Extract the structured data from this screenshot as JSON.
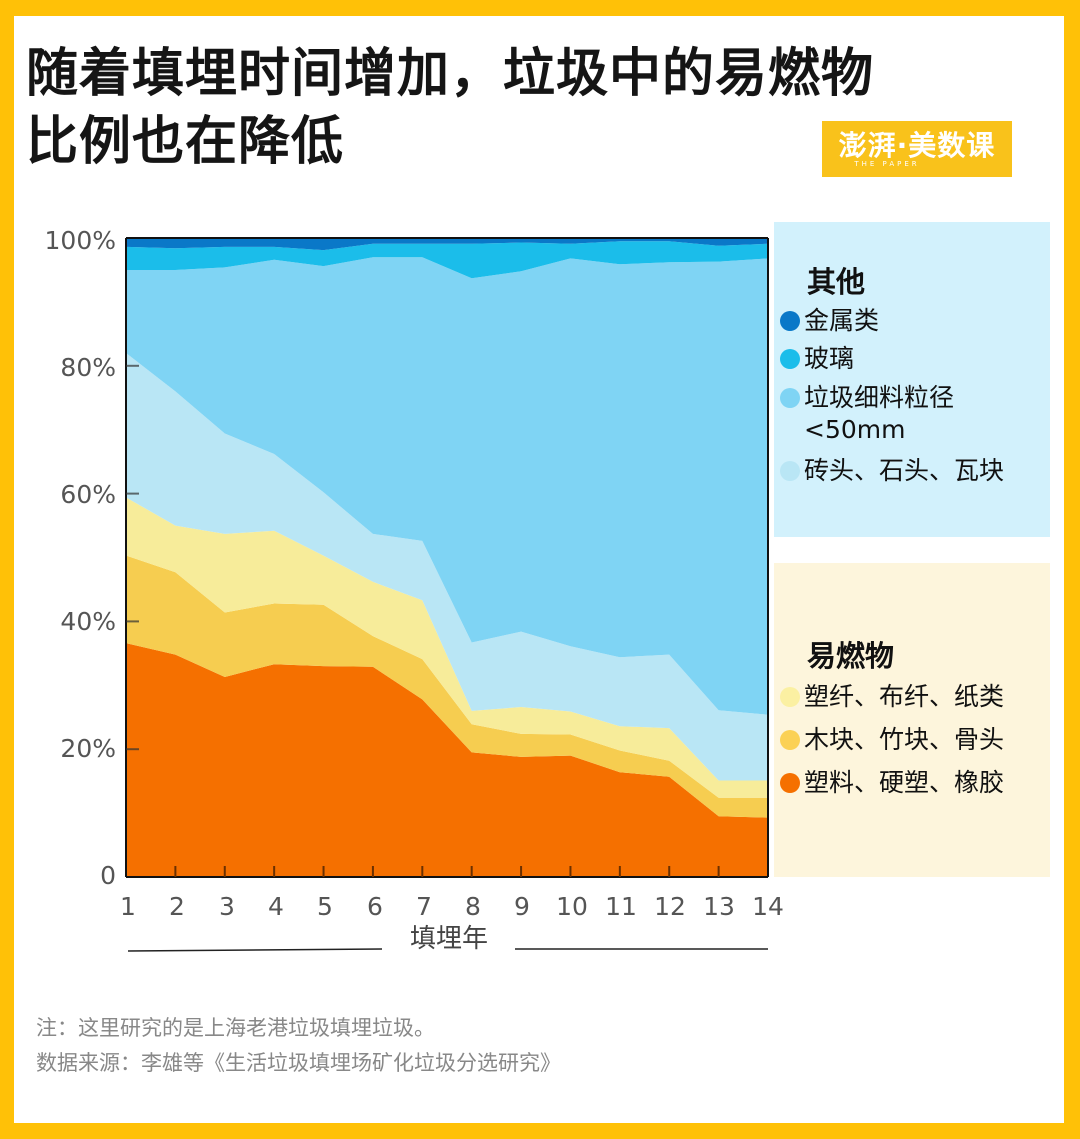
{
  "title_line1": "随着填埋时间增加，垃圾中的易燃物",
  "title_line2": "比例也在降低",
  "logo": {
    "main": "澎湃·美数课",
    "sub": "THE PAPER"
  },
  "legend": {
    "group_other": "其他",
    "group_combustible": "易燃物",
    "items": [
      {
        "label": "金属类",
        "color": "#0a78c8"
      },
      {
        "label": "玻璃",
        "color": "#1bbdea"
      },
      {
        "label": "垃圾细料粒径\n<50mm",
        "label_line1": "垃圾细料粒径",
        "label_line2": "<50mm",
        "color": "#7fd4f4"
      },
      {
        "label": "砖头、石头、瓦块",
        "color": "#b9e6f5"
      },
      {
        "label": "塑纤、布纤、纸类",
        "color": "#f7ec9a"
      },
      {
        "label": "木块、竹块、骨头",
        "color": "#f6cd50"
      },
      {
        "label": "塑料、硬塑、橡胶",
        "color": "#f57000"
      }
    ]
  },
  "note": "注：这里研究的是上海老港垃圾填埋垃圾。",
  "source": "数据来源：李雄等《生活垃圾填埋场矿化垃圾分选研究》",
  "chart_data": {
    "type": "area",
    "stacked": true,
    "title": "随着填埋时间增加，垃圾中的易燃物比例也在降低",
    "xlabel": "填埋年",
    "ylabel": "",
    "x": [
      1,
      2,
      3,
      4,
      5,
      6,
      7,
      8,
      9,
      10,
      11,
      12,
      13,
      14
    ],
    "x_tick_labels": [
      "1",
      "2",
      "3",
      "4",
      "5",
      "6",
      "7",
      "8",
      "9",
      "10",
      "11",
      "12",
      "13",
      "14"
    ],
    "ylim": [
      0,
      100
    ],
    "y_ticks": [
      0,
      20,
      40,
      60,
      80,
      100
    ],
    "y_tick_labels": [
      "0",
      "20%",
      "40%",
      "60%",
      "80%",
      "100%"
    ],
    "grid": false,
    "legend_position": "right",
    "series": [
      {
        "name": "塑料、硬塑、橡胶",
        "color": "#f57000",
        "values": [
          36.6,
          34.8,
          31.3,
          33.3,
          33.0,
          32.9,
          27.8,
          19.5,
          18.8,
          19.0,
          16.4,
          15.7,
          9.5,
          9.3
        ]
      },
      {
        "name": "木块、竹块、骨头",
        "color": "#f6cd50",
        "values": [
          13.7,
          12.9,
          10.1,
          9.5,
          9.6,
          4.8,
          6.3,
          4.4,
          3.6,
          3.3,
          3.4,
          2.5,
          2.9,
          3.1
        ]
      },
      {
        "name": "塑纤、布纤、纸类",
        "color": "#f7ec9a",
        "values": [
          9.1,
          7.3,
          12.3,
          11.4,
          7.7,
          8.5,
          9.2,
          2.1,
          4.2,
          3.6,
          3.8,
          5.1,
          2.7,
          2.7
        ]
      },
      {
        "name": "砖头、石头、瓦块",
        "color": "#b9e6f5",
        "values": [
          22.6,
          21.0,
          15.7,
          12.0,
          9.9,
          7.5,
          9.3,
          10.7,
          11.8,
          10.2,
          10.8,
          11.5,
          11.0,
          10.3
        ]
      },
      {
        "name": "垃圾细料粒径<50mm",
        "color": "#7fd4f4",
        "values": [
          13.0,
          19.0,
          26.0,
          30.4,
          35.4,
          43.3,
          44.4,
          57.0,
          56.4,
          60.7,
          61.5,
          61.4,
          70.2,
          71.4
        ]
      },
      {
        "name": "玻璃",
        "color": "#1bbdea",
        "values": [
          3.6,
          3.4,
          3.2,
          2.0,
          2.5,
          2.1,
          2.1,
          5.4,
          4.5,
          2.3,
          3.6,
          3.3,
          2.5,
          2.3
        ]
      },
      {
        "name": "金属类",
        "color": "#0a78c8",
        "values": [
          1.4,
          1.6,
          1.4,
          1.4,
          1.9,
          0.9,
          0.9,
          0.9,
          0.7,
          0.9,
          0.5,
          0.5,
          1.2,
          0.9
        ]
      }
    ]
  }
}
